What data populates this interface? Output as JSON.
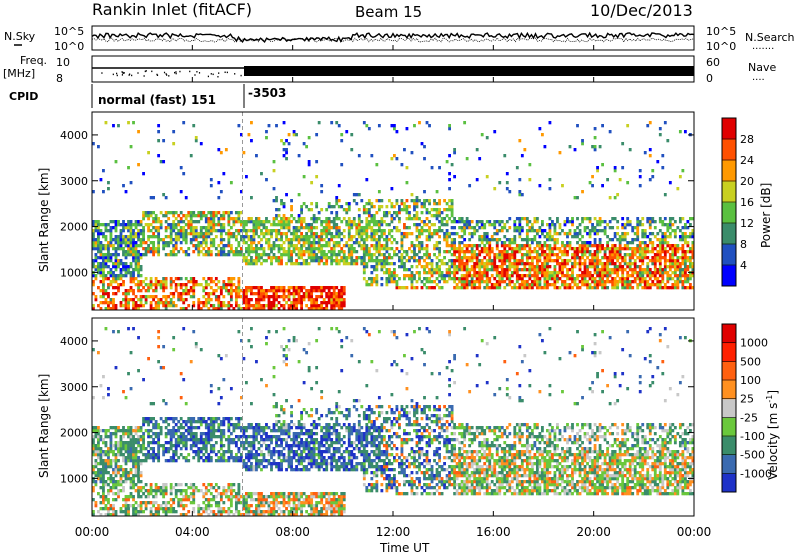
{
  "header": {
    "station": "Rankin Inlet (fitACF)",
    "beam": "Beam 15",
    "date": "10/Dec/2013"
  },
  "noise_panel": {
    "left_label": "N.Sky",
    "right_label": "N.Search",
    "right_label_dots": ".......",
    "y_top": "10^5",
    "y_bottom": "10^0",
    "right_y_top": "10^5",
    "right_y_bottom": "10^0"
  },
  "freq_panel": {
    "left_label_1": "Freq.",
    "left_label_2": "[MHz]",
    "y_top": "10",
    "y_bottom": "8",
    "right_label": "Nave",
    "right_label_dots": "....",
    "right_y_top": "60",
    "right_y_bottom": "0"
  },
  "cpid_panel": {
    "label": "CPID",
    "mode_1": "normal (fast) 151",
    "mode_2": "-3503"
  },
  "chart_data": [
    {
      "type": "heatmap",
      "name": "power",
      "ylabel": "Slant Range [km]",
      "y_ticks": [
        "1000",
        "2000",
        "3000",
        "4000"
      ],
      "ylim": [
        180,
        4500
      ],
      "xlim": [
        "00:00",
        "24:00"
      ],
      "colorbar_label": "Power [dB]",
      "colorbar_ticks": [
        "4",
        "8",
        "12",
        "16",
        "20",
        "24",
        "28"
      ],
      "colorbar_colors": [
        "#0000ff",
        "#2050c0",
        "#3a8c6a",
        "#5ac040",
        "#c8d020",
        "#ff9900",
        "#ff5000",
        "#e00000"
      ],
      "colorbar_range": [
        0,
        30
      ]
    },
    {
      "type": "heatmap",
      "name": "velocity",
      "ylabel": "Slant Range [km]",
      "y_ticks": [
        "1000",
        "2000",
        "3000",
        "4000"
      ],
      "ylim": [
        180,
        4500
      ],
      "xlim": [
        "00:00",
        "24:00"
      ],
      "colorbar_label": "Velocity [m s^-1]",
      "colorbar_label_main": "Velocity",
      "colorbar_label_unit": "[m s",
      "colorbar_label_exp": "-1",
      "colorbar_label_close": "]",
      "colorbar_ticks": [
        "1000",
        "500",
        "100",
        "25",
        "-25",
        "-100",
        "-500",
        "-1000"
      ],
      "colorbar_colors": [
        "#1e32c8",
        "#3a6ab0",
        "#3a8c6a",
        "#6ac83c",
        "#c8c8c8",
        "#ff9020",
        "#ff6010",
        "#ff2000",
        "#e00000"
      ]
    }
  ],
  "x_axis": {
    "ticks": [
      "00:00",
      "04:00",
      "08:00",
      "12:00",
      "16:00",
      "20:00",
      "00:00"
    ],
    "label": "Time UT"
  }
}
